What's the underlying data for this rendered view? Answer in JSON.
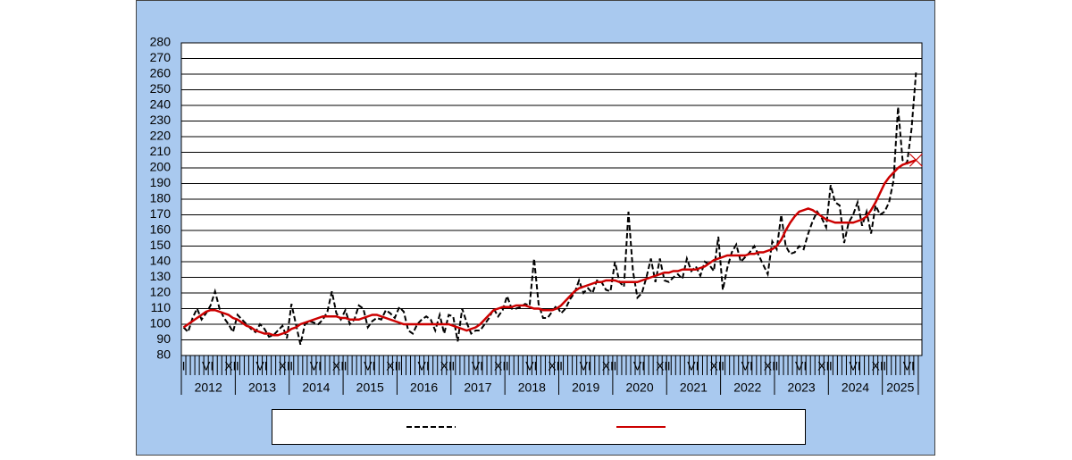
{
  "chart_data": {
    "type": "line",
    "categories": [
      "I",
      null,
      null,
      null,
      null,
      "VI",
      null,
      null,
      null,
      null,
      "XI",
      null,
      "I",
      null,
      null,
      null,
      null,
      "VI",
      null,
      null,
      null,
      null,
      "XI",
      null,
      "I",
      null,
      null,
      null,
      null,
      "VI",
      null,
      null,
      null,
      null,
      "XI",
      null,
      "I",
      null,
      null,
      null,
      null,
      "VI",
      null,
      null,
      null,
      null,
      "XI",
      null,
      "I",
      null,
      null,
      null,
      null,
      "VI",
      null,
      null,
      null,
      null,
      "XI",
      null,
      "I",
      null,
      null,
      null,
      null,
      "VI",
      null,
      null,
      null,
      null,
      "XI",
      null,
      "I",
      null,
      null,
      null,
      null,
      "VI",
      null,
      null,
      null,
      null,
      "XI",
      null,
      "I",
      null,
      null,
      null,
      null,
      "VI",
      null,
      null,
      null,
      null,
      "XI",
      null,
      "I",
      null,
      null,
      null,
      null,
      "VI",
      null,
      null,
      null,
      null,
      "XI",
      null,
      "I",
      null,
      null,
      null,
      null,
      "VI",
      null,
      null,
      null,
      null,
      "XI",
      null,
      "I",
      null,
      null,
      null,
      null,
      "VI",
      null,
      null,
      null,
      null,
      "XI",
      null,
      "I",
      null,
      null,
      null,
      null,
      "VI",
      null,
      null,
      null,
      null,
      "XI",
      null,
      "I",
      null,
      null,
      null,
      null,
      "VI",
      null,
      null,
      null,
      null,
      "XI",
      null,
      "I",
      null,
      null,
      null,
      null,
      "VI",
      null,
      null
    ],
    "years": [
      "2012",
      "2013",
      "2014",
      "2015",
      "2016",
      "2017",
      "2018",
      "2019",
      "2020",
      "2021",
      "2022",
      "2023",
      "2024",
      "2025"
    ],
    "series": [
      {
        "color": "#000000",
        "dash": true,
        "values": [
          98,
          95,
          104,
          110,
          103,
          107,
          112,
          121,
          110,
          104,
          100,
          95,
          106,
          103,
          100,
          97,
          95,
          100,
          97,
          92,
          93,
          96,
          99,
          91,
          113,
          100,
          87,
          100,
          102,
          101,
          100,
          103,
          108,
          121,
          107,
          103,
          109,
          100,
          103,
          112,
          110,
          98,
          102,
          104,
          103,
          109,
          107,
          104,
          111,
          108,
          96,
          94,
          100,
          103,
          105,
          103,
          96,
          106,
          94,
          106,
          105,
          89,
          110,
          101,
          94,
          96,
          96,
          100,
          104,
          110,
          105,
          109,
          118,
          110,
          110,
          111,
          113,
          112,
          142,
          113,
          104,
          104,
          108,
          112,
          107,
          110,
          116,
          120,
          128,
          120,
          123,
          120,
          128,
          127,
          122,
          121,
          140,
          127,
          124,
          172,
          134,
          117,
          120,
          130,
          142,
          127,
          142,
          128,
          127,
          130,
          132,
          129,
          142,
          134,
          137,
          131,
          140,
          138,
          134,
          156,
          122,
          136,
          146,
          151,
          140,
          143,
          146,
          150,
          144,
          138,
          132,
          153,
          148,
          170,
          150,
          145,
          146,
          150,
          148,
          158,
          166,
          172,
          168,
          162,
          189,
          178,
          176,
          152,
          165,
          170,
          178,
          163,
          172,
          158,
          176,
          170,
          172,
          178,
          192,
          239,
          205,
          203,
          225,
          261
        ]
      },
      {
        "color": "#cc0000",
        "values": [
          98,
          100,
          102,
          104,
          106,
          108,
          109,
          109,
          108,
          107,
          106,
          104,
          103,
          101,
          99,
          98,
          96,
          95,
          94,
          94,
          93,
          93,
          94,
          95,
          97,
          98,
          100,
          101,
          102,
          103,
          104,
          105,
          105,
          105,
          105,
          104,
          104,
          103,
          103,
          103,
          104,
          105,
          106,
          106,
          105,
          104,
          103,
          102,
          101,
          100,
          100,
          100,
          100,
          100,
          100,
          100,
          100,
          100,
          100,
          100,
          99,
          98,
          97,
          96,
          97,
          98,
          100,
          103,
          106,
          109,
          110,
          111,
          111,
          111,
          112,
          112,
          112,
          111,
          110,
          110,
          109,
          109,
          109,
          110,
          112,
          115,
          118,
          121,
          123,
          124,
          125,
          126,
          127,
          127,
          128,
          128,
          128,
          127,
          127,
          127,
          127,
          127,
          128,
          129,
          130,
          131,
          132,
          133,
          133,
          134,
          134,
          135,
          135,
          135,
          135,
          136,
          137,
          139,
          141,
          142,
          143,
          144,
          144,
          144,
          144,
          144,
          145,
          145,
          146,
          146,
          147,
          148,
          150,
          154,
          160,
          165,
          169,
          172,
          173,
          174,
          173,
          171,
          169,
          167,
          166,
          165,
          165,
          165,
          165,
          165,
          166,
          167,
          169,
          173,
          178,
          184,
          190,
          194,
          197,
          200,
          202,
          203,
          204,
          205
        ]
      }
    ],
    "ylim": [
      80,
      280
    ],
    "yticks": [
      80,
      90,
      100,
      110,
      120,
      130,
      140,
      150,
      160,
      170,
      180,
      190,
      200,
      210,
      220,
      230,
      240,
      250,
      260,
      270,
      280
    ],
    "grid": true,
    "legend": "bottom"
  }
}
